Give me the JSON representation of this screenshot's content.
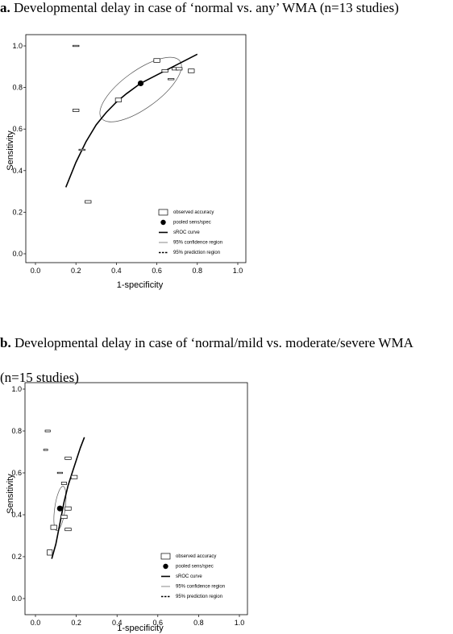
{
  "captions": {
    "a_letter": "a.",
    "a_text": "Developmental delay in case of ‘normal vs. any’ WMA (n=13 studies)",
    "b_letter": "b.",
    "b_text": "Developmental delay in case of ‘normal/mild vs. moderate/severe WMA",
    "b_text2": "(n=15 studies)"
  },
  "chart_data": [
    {
      "type": "scatter",
      "title": "",
      "xlabel": "1-specificity",
      "ylabel": "Sensitivity",
      "xlim": [
        0,
        1
      ],
      "ylim": [
        0,
        1
      ],
      "xticks": [
        "0.0",
        "0.2",
        "0.4",
        "0.6",
        "0.8",
        "1.0"
      ],
      "yticks": [
        "0.0",
        "0.2",
        "0.4",
        "0.6",
        "0.8",
        "1.0"
      ],
      "grid": false,
      "legend_position": "bottom-right",
      "legend": [
        "observed accuracy",
        "pooled sens/spec",
        "sROC curve",
        "95% confidence region",
        "95% prediction region"
      ],
      "observed_accuracy": [
        {
          "x": 0.2,
          "y": 1.0,
          "w": 0.03,
          "h": 0.006
        },
        {
          "x": 0.6,
          "y": 0.93,
          "w": 0.03,
          "h": 0.018
        },
        {
          "x": 0.64,
          "y": 0.88,
          "w": 0.03,
          "h": 0.012
        },
        {
          "x": 0.69,
          "y": 0.89,
          "w": 0.03,
          "h": 0.012
        },
        {
          "x": 0.71,
          "y": 0.89,
          "w": 0.03,
          "h": 0.012
        },
        {
          "x": 0.77,
          "y": 0.88,
          "w": 0.03,
          "h": 0.018
        },
        {
          "x": 0.67,
          "y": 0.84,
          "w": 0.03,
          "h": 0.006
        },
        {
          "x": 0.41,
          "y": 0.74,
          "w": 0.03,
          "h": 0.018
        },
        {
          "x": 0.2,
          "y": 0.69,
          "w": 0.03,
          "h": 0.012
        },
        {
          "x": 0.23,
          "y": 0.5,
          "w": 0.03,
          "h": 0.006
        },
        {
          "x": 0.26,
          "y": 0.25,
          "w": 0.03,
          "h": 0.012
        }
      ],
      "pooled": {
        "x": 0.52,
        "y": 0.82
      },
      "sroc": [
        [
          0.15,
          0.32
        ],
        [
          0.2,
          0.44
        ],
        [
          0.25,
          0.54
        ],
        [
          0.3,
          0.62
        ],
        [
          0.35,
          0.68
        ],
        [
          0.4,
          0.73
        ],
        [
          0.45,
          0.77
        ],
        [
          0.52,
          0.82
        ],
        [
          0.6,
          0.86
        ],
        [
          0.7,
          0.91
        ],
        [
          0.8,
          0.96
        ]
      ],
      "confidence_region": {
        "cx": 0.52,
        "cy": 0.79,
        "rx": 0.24,
        "ry": 0.09,
        "angle_deg": -36
      }
    },
    {
      "type": "scatter",
      "title": "",
      "xlabel": "1-specificity",
      "ylabel": "Sensitivity",
      "xlim": [
        0,
        1
      ],
      "ylim": [
        0,
        1
      ],
      "xticks": [
        "0.0",
        "0.2",
        "0.4",
        "0.6",
        "0.8",
        "1.0"
      ],
      "yticks": [
        "0.0",
        "0.2",
        "0.4",
        "0.6",
        "0.8",
        "1.0"
      ],
      "grid": false,
      "legend_position": "bottom-right",
      "legend": [
        "observed accuracy",
        "pooled sens/spec",
        "sROC curve",
        "95% confidence region",
        "95% prediction region"
      ],
      "observed_accuracy": [
        {
          "x": 0.06,
          "y": 0.8,
          "w": 0.025,
          "h": 0.008
        },
        {
          "x": 0.05,
          "y": 0.71,
          "w": 0.02,
          "h": 0.006
        },
        {
          "x": 0.16,
          "y": 0.67,
          "w": 0.03,
          "h": 0.012
        },
        {
          "x": 0.12,
          "y": 0.6,
          "w": 0.025,
          "h": 0.006
        },
        {
          "x": 0.19,
          "y": 0.58,
          "w": 0.03,
          "h": 0.016
        },
        {
          "x": 0.14,
          "y": 0.55,
          "w": 0.025,
          "h": 0.012
        },
        {
          "x": 0.16,
          "y": 0.43,
          "w": 0.03,
          "h": 0.016
        },
        {
          "x": 0.14,
          "y": 0.39,
          "w": 0.03,
          "h": 0.016
        },
        {
          "x": 0.09,
          "y": 0.34,
          "w": 0.03,
          "h": 0.02
        },
        {
          "x": 0.16,
          "y": 0.33,
          "w": 0.03,
          "h": 0.012
        },
        {
          "x": 0.07,
          "y": 0.22,
          "w": 0.025,
          "h": 0.025
        }
      ],
      "pooled": {
        "x": 0.12,
        "y": 0.43
      },
      "sroc": [
        [
          0.08,
          0.19
        ],
        [
          0.1,
          0.26
        ],
        [
          0.12,
          0.36
        ],
        [
          0.14,
          0.46
        ],
        [
          0.16,
          0.54
        ],
        [
          0.18,
          0.6
        ],
        [
          0.2,
          0.66
        ],
        [
          0.22,
          0.72
        ],
        [
          0.24,
          0.77
        ]
      ],
      "confidence_region": {
        "cx": 0.12,
        "cy": 0.43,
        "rx": 0.11,
        "ry": 0.025,
        "angle_deg": -82
      }
    }
  ]
}
